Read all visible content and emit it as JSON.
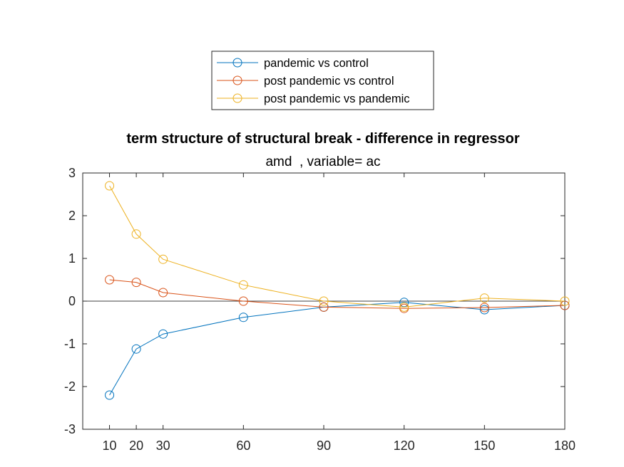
{
  "chart_data": {
    "type": "line",
    "title": "term structure of structural break - difference in regressor",
    "subtitle": "amd  , variable= ac",
    "xlabel": "",
    "ylabel": "",
    "x": [
      10,
      20,
      30,
      60,
      90,
      120,
      150,
      180
    ],
    "x_tick_labels": [
      "10",
      "20",
      "30",
      "60",
      "90",
      "120",
      "150",
      "180"
    ],
    "xlim": [
      0,
      180
    ],
    "ylim": [
      -3,
      3
    ],
    "y_ticks": [
      -3,
      -2,
      -1,
      0,
      1,
      2,
      3
    ],
    "y_tick_labels": [
      "-3",
      "-2",
      "-1",
      "0",
      "1",
      "2",
      "3"
    ],
    "zero_line": true,
    "grid": false,
    "legend_position": "top-center, outside",
    "marker": "circle",
    "series": [
      {
        "name": "pandemic vs control",
        "color": "#0072BD",
        "values": [
          -2.2,
          -1.12,
          -0.77,
          -0.38,
          -0.14,
          -0.03,
          -0.2,
          -0.1
        ]
      },
      {
        "name": "post pandemic vs control",
        "color": "#D95319",
        "values": [
          0.5,
          0.44,
          0.2,
          0.0,
          -0.14,
          -0.17,
          -0.15,
          -0.1
        ]
      },
      {
        "name": "post pandemic vs pandemic",
        "color": "#EDB120",
        "values": [
          2.7,
          1.57,
          0.98,
          0.38,
          0.0,
          -0.14,
          0.07,
          0.0
        ]
      }
    ]
  }
}
